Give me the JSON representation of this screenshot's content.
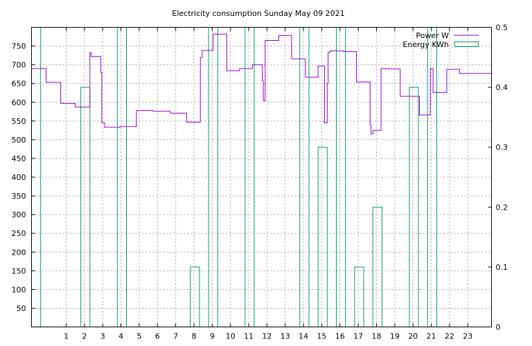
{
  "chart_data": {
    "type": "line",
    "title": "Electricity consumption Sunday May 09 2021",
    "xlabel": "",
    "ylabel": "",
    "y2label": "",
    "xlim": [
      -0.9,
      24.3
    ],
    "ylim": [
      0,
      800
    ],
    "y2lim": [
      0,
      0.5
    ],
    "x_ticks": [
      "1",
      "2",
      "3",
      "4",
      "5",
      "6",
      "7",
      "8",
      "9",
      "10",
      "11",
      "12",
      "13",
      "14",
      "15",
      "16",
      "17",
      "18",
      "19",
      "20",
      "21",
      "22",
      "23"
    ],
    "y_ticks": [
      "50",
      "100",
      "150",
      "200",
      "250",
      "300",
      "350",
      "400",
      "450",
      "500",
      "550",
      "600",
      "650",
      "700",
      "750"
    ],
    "y2_ticks": [
      "0",
      "0.1",
      "0.2",
      "0.3",
      "0.4",
      "0.5"
    ],
    "grid": true,
    "legend_position": "top-right",
    "series": [
      {
        "name": "Power W",
        "color": "#9400d3",
        "axis": "left",
        "style": "step",
        "points": [
          [
            -0.9,
            690
          ],
          [
            -0.1,
            690
          ],
          [
            -0.1,
            653
          ],
          [
            0.7,
            653
          ],
          [
            0.7,
            597
          ],
          [
            1.5,
            597
          ],
          [
            1.5,
            587
          ],
          [
            2.3,
            587
          ],
          [
            2.3,
            733
          ],
          [
            2.37,
            733
          ],
          [
            2.37,
            722
          ],
          [
            2.9,
            722
          ],
          [
            2.9,
            680
          ],
          [
            2.95,
            680
          ],
          [
            2.95,
            545
          ],
          [
            3.1,
            545
          ],
          [
            3.1,
            533
          ],
          [
            3.95,
            533
          ],
          [
            3.95,
            535
          ],
          [
            4.85,
            535
          ],
          [
            4.85,
            578
          ],
          [
            5.75,
            578
          ],
          [
            5.75,
            576
          ],
          [
            6.7,
            576
          ],
          [
            6.7,
            571
          ],
          [
            7.6,
            571
          ],
          [
            7.6,
            547
          ],
          [
            8.35,
            547
          ],
          [
            8.35,
            720
          ],
          [
            8.45,
            720
          ],
          [
            8.45,
            738
          ],
          [
            9.05,
            738
          ],
          [
            9.05,
            782
          ],
          [
            9.8,
            782
          ],
          [
            9.8,
            684
          ],
          [
            10.5,
            684
          ],
          [
            10.5,
            690
          ],
          [
            11.2,
            690
          ],
          [
            11.2,
            700
          ],
          [
            11.75,
            700
          ],
          [
            11.75,
            657
          ],
          [
            11.8,
            657
          ],
          [
            11.8,
            604
          ],
          [
            11.9,
            604
          ],
          [
            11.9,
            765
          ],
          [
            12.65,
            765
          ],
          [
            12.65,
            778
          ],
          [
            13.35,
            778
          ],
          [
            13.35,
            716
          ],
          [
            14.1,
            716
          ],
          [
            14.1,
            667
          ],
          [
            14.8,
            667
          ],
          [
            14.8,
            697
          ],
          [
            15.15,
            697
          ],
          [
            15.15,
            545
          ],
          [
            15.3,
            545
          ],
          [
            15.3,
            650
          ],
          [
            15.35,
            650
          ],
          [
            15.35,
            733
          ],
          [
            15.45,
            733
          ],
          [
            15.45,
            737
          ],
          [
            16.2,
            737
          ],
          [
            16.2,
            735
          ],
          [
            16.9,
            735
          ],
          [
            16.9,
            654
          ],
          [
            17.65,
            654
          ],
          [
            17.65,
            540
          ],
          [
            17.7,
            540
          ],
          [
            17.7,
            515
          ],
          [
            17.8,
            515
          ],
          [
            17.8,
            525
          ],
          [
            18.25,
            525
          ],
          [
            18.25,
            690
          ],
          [
            18.5,
            690
          ],
          [
            18.5,
            689
          ],
          [
            19.3,
            689
          ],
          [
            19.3,
            616
          ],
          [
            20.35,
            616
          ],
          [
            20.35,
            566
          ],
          [
            20.95,
            566
          ],
          [
            20.95,
            690
          ],
          [
            21.1,
            690
          ],
          [
            21.1,
            626
          ],
          [
            21.85,
            626
          ],
          [
            21.85,
            688
          ],
          [
            22.55,
            688
          ],
          [
            22.55,
            677
          ],
          [
            24.3,
            677
          ]
        ]
      },
      {
        "name": "Energy KWh",
        "color": "#009e73",
        "axis": "right",
        "style": "boxes",
        "boxes": [
          {
            "from": -0.9,
            "to": -0.4,
            "value": 0.5
          },
          {
            "from": 1.8,
            "to": 2.3,
            "value": 0.4
          },
          {
            "from": 3.8,
            "to": 4.3,
            "value": 0.5
          },
          {
            "from": 7.8,
            "to": 8.3,
            "value": 0.1
          },
          {
            "from": 8.8,
            "to": 9.3,
            "value": 0.5
          },
          {
            "from": 10.8,
            "to": 11.3,
            "value": 0.5
          },
          {
            "from": 13.8,
            "to": 14.3,
            "value": 0.5
          },
          {
            "from": 14.8,
            "to": 15.3,
            "value": 0.3
          },
          {
            "from": 15.8,
            "to": 16.3,
            "value": 0.5
          },
          {
            "from": 16.8,
            "to": 17.3,
            "value": 0.1
          },
          {
            "from": 17.8,
            "to": 18.3,
            "value": 0.2
          },
          {
            "from": 19.8,
            "to": 20.3,
            "value": 0.4
          },
          {
            "from": 20.8,
            "to": 21.3,
            "value": 0.5
          }
        ]
      }
    ]
  }
}
